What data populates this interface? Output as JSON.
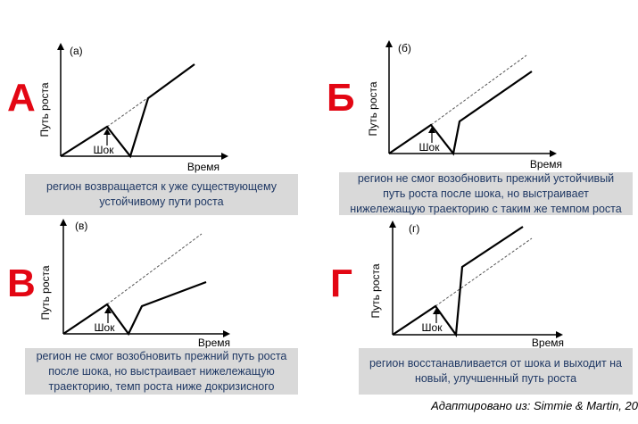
{
  "colors": {
    "letter": "#e30613",
    "caption_bg": "#d9d9d9",
    "caption_text": "#1f3864"
  },
  "panels": [
    {
      "letter": "А",
      "sublabel": "(а)",
      "ylabel": "Путь роста",
      "xlabel": "Время",
      "shock_label": "Шок",
      "caption": "регион возвращается к уже существующему устойчивому пути роста"
    },
    {
      "letter": "Б",
      "sublabel": "(б)",
      "ylabel": "Путь роста",
      "xlabel": "Время",
      "shock_label": "Шок",
      "caption": "регион не смог возобновить прежний устойчивый путь роста после шока, но выстраивает нижележащую траекторию с таким же темпом роста"
    },
    {
      "letter": "В",
      "sublabel": "(в)",
      "ylabel": "Путь роста",
      "xlabel": "Время",
      "shock_label": "Шок",
      "caption": "регион не смог возобновить прежний путь роста после шока, но выстраивает нижележащую траекторию, темп роста ниже докризисного"
    },
    {
      "letter": "Г",
      "sublabel": "(г)",
      "ylabel": "Путь роста",
      "xlabel": "Время",
      "shock_label": "Шок",
      "caption": "регион восстанавливается от шока и выходит на новый, улучшенный путь роста"
    }
  ],
  "source": "Адаптировано из: Simmie & Martin, 20"
}
